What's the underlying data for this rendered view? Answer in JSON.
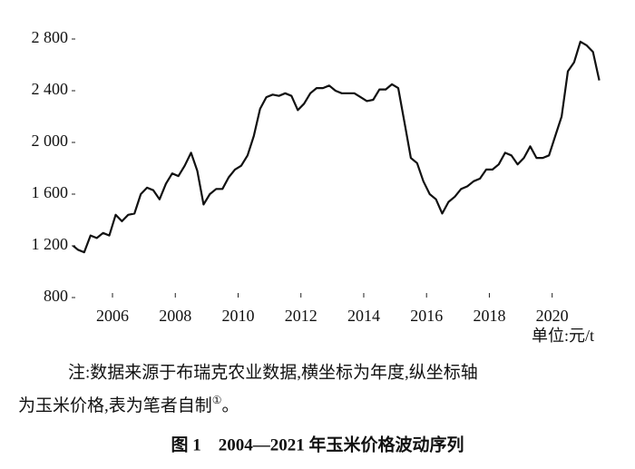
{
  "chart_data": {
    "type": "line",
    "x": [
      2004.75,
      2004.9,
      2005.1,
      2005.3,
      2005.5,
      2005.7,
      2005.9,
      2006.1,
      2006.3,
      2006.5,
      2006.7,
      2006.9,
      2007.1,
      2007.3,
      2007.5,
      2007.7,
      2007.9,
      2008.1,
      2008.3,
      2008.5,
      2008.7,
      2008.9,
      2009.1,
      2009.3,
      2009.5,
      2009.7,
      2009.9,
      2010.1,
      2010.3,
      2010.5,
      2010.7,
      2010.9,
      2011.1,
      2011.3,
      2011.5,
      2011.7,
      2011.9,
      2012.1,
      2012.3,
      2012.5,
      2012.7,
      2012.9,
      2013.1,
      2013.3,
      2013.5,
      2013.7,
      2013.9,
      2014.1,
      2014.3,
      2014.5,
      2014.7,
      2014.9,
      2015.1,
      2015.3,
      2015.5,
      2015.7,
      2015.9,
      2016.1,
      2016.3,
      2016.5,
      2016.7,
      2016.9,
      2017.1,
      2017.3,
      2017.5,
      2017.7,
      2017.9,
      2018.1,
      2018.3,
      2018.5,
      2018.7,
      2018.9,
      2019.1,
      2019.3,
      2019.5,
      2019.7,
      2019.9,
      2020.1,
      2020.3,
      2020.5,
      2020.7,
      2020.9,
      2021.1,
      2021.3,
      2021.5
    ],
    "values": [
      1200,
      1170,
      1150,
      1280,
      1260,
      1300,
      1280,
      1440,
      1390,
      1440,
      1450,
      1600,
      1650,
      1630,
      1560,
      1680,
      1760,
      1740,
      1820,
      1920,
      1780,
      1520,
      1600,
      1640,
      1640,
      1730,
      1790,
      1820,
      1900,
      2050,
      2260,
      2350,
      2370,
      2360,
      2380,
      2360,
      2250,
      2300,
      2380,
      2420,
      2420,
      2440,
      2400,
      2380,
      2380,
      2380,
      2350,
      2320,
      2330,
      2410,
      2410,
      2450,
      2420,
      2150,
      1880,
      1840,
      1700,
      1600,
      1560,
      1450,
      1540,
      1580,
      1640,
      1660,
      1700,
      1720,
      1790,
      1790,
      1830,
      1920,
      1900,
      1830,
      1880,
      1970,
      1880,
      1880,
      1900,
      2050,
      2200,
      2550,
      2620,
      2780,
      2750,
      2700,
      2480
    ],
    "color": "#111111",
    "xlim": [
      2004.7,
      2021.8
    ],
    "xticks": [
      2006,
      2008,
      2010,
      2012,
      2014,
      2016,
      2018,
      2020
    ],
    "ylim": [
      800,
      2800
    ],
    "yticks": [
      800,
      {
        "value": 1200,
        "label": "1 200"
      },
      {
        "value": 1600,
        "label": "1 600"
      },
      {
        "value": 2000,
        "label": "2 000"
      },
      {
        "value": 2400,
        "label": "2 400"
      },
      {
        "value": 2800,
        "label": "2 800"
      }
    ],
    "unit_label": "单位:元/t",
    "note": {
      "line1": "注:数据来源于布瑞克农业数据,横坐标为年度,纵坐标轴",
      "line2": "为玉米价格,表为笔者自制",
      "mark": "①",
      "end": "。"
    },
    "caption": "图 1　2004—2021 年玉米价格波动序列"
  }
}
